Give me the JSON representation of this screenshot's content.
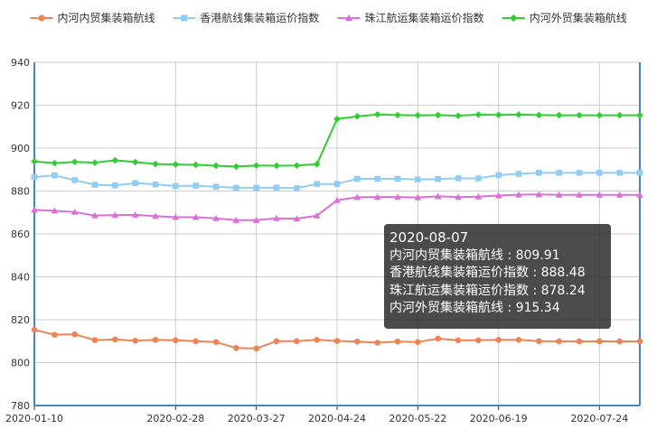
{
  "chart_data": {
    "type": "line",
    "title": "",
    "xlabel": "",
    "ylabel": "",
    "ylim": [
      780,
      940
    ],
    "yticks": [
      780,
      800,
      820,
      840,
      860,
      880,
      900,
      920,
      940
    ],
    "grid": true,
    "legend_position": "top-right",
    "x_tick_labels": [
      "2020-01-10",
      "2020-02-28",
      "2020-03-27",
      "2020-04-24",
      "2020-05-22",
      "2020-06-19",
      "2020-07-24"
    ],
    "x": [
      "2020-01-10",
      "2020-01-17",
      "2020-01-24",
      "2020-01-31",
      "2020-02-07",
      "2020-02-14",
      "2020-02-21",
      "2020-02-28",
      "2020-03-06",
      "2020-03-13",
      "2020-03-20",
      "2020-03-27",
      "2020-04-03",
      "2020-04-10",
      "2020-04-17",
      "2020-04-24",
      "2020-05-01",
      "2020-05-08",
      "2020-05-15",
      "2020-05-22",
      "2020-05-29",
      "2020-06-05",
      "2020-06-12",
      "2020-06-19",
      "2020-06-26",
      "2020-07-03",
      "2020-07-10",
      "2020-07-17",
      "2020-07-24",
      "2020-07-31",
      "2020-08-07"
    ],
    "series": [
      {
        "name": "内河内贸集装箱航线",
        "color": "#ee8355",
        "marker": "circle",
        "values": [
          815.3,
          813.0,
          813.2,
          810.5,
          810.8,
          810.2,
          810.6,
          810.4,
          810.0,
          809.6,
          806.8,
          806.6,
          810.0,
          810.0,
          810.6,
          810.1,
          809.8,
          809.3,
          809.8,
          809.6,
          811.2,
          810.4,
          810.4,
          810.6,
          810.6,
          810.0,
          809.91,
          809.91,
          809.91,
          809.91,
          809.91
        ]
      },
      {
        "name": "香港航线集装箱运价指数",
        "color": "#91cdf3",
        "marker": "square",
        "values": [
          886.5,
          887.3,
          885.1,
          882.9,
          882.6,
          883.7,
          883.1,
          882.3,
          882.5,
          882.0,
          881.5,
          881.5,
          881.6,
          881.3,
          883.3,
          883.3,
          885.7,
          885.7,
          885.7,
          885.4,
          885.6,
          885.9,
          885.9,
          887.4,
          888.0,
          888.5,
          888.48,
          888.48,
          888.48,
          888.48,
          888.48
        ]
      },
      {
        "name": "珠江航运集装箱运价指数",
        "color": "#da70d6",
        "marker": "triangle",
        "values": [
          871.2,
          870.8,
          870.2,
          868.6,
          868.8,
          868.9,
          868.3,
          867.8,
          867.8,
          867.3,
          866.4,
          866.4,
          867.3,
          867.1,
          868.5,
          875.7,
          877.1,
          877.2,
          877.2,
          877.0,
          877.5,
          877.2,
          877.4,
          877.9,
          878.3,
          878.4,
          878.24,
          878.24,
          878.24,
          878.24,
          878.24
        ]
      },
      {
        "name": "内河外贸集装箱航线",
        "color": "#32cd32",
        "marker": "diamond",
        "values": [
          893.8,
          893.0,
          893.6,
          893.2,
          894.3,
          893.5,
          892.6,
          892.4,
          892.2,
          891.8,
          891.4,
          891.9,
          891.8,
          891.9,
          892.5,
          913.6,
          914.8,
          915.7,
          915.4,
          915.3,
          915.4,
          915.1,
          915.6,
          915.5,
          915.6,
          915.4,
          915.34,
          915.34,
          915.34,
          915.34,
          915.34
        ]
      }
    ]
  },
  "tooltip": {
    "date": "2020-08-07",
    "rows": [
      "内河内贸集装箱航线 : 809.91",
      "香港航线集装箱运价指数 : 888.48",
      "珠江航运集装箱运价指数 : 878.24",
      "内河外贸集装箱航线 : 915.34"
    ]
  }
}
